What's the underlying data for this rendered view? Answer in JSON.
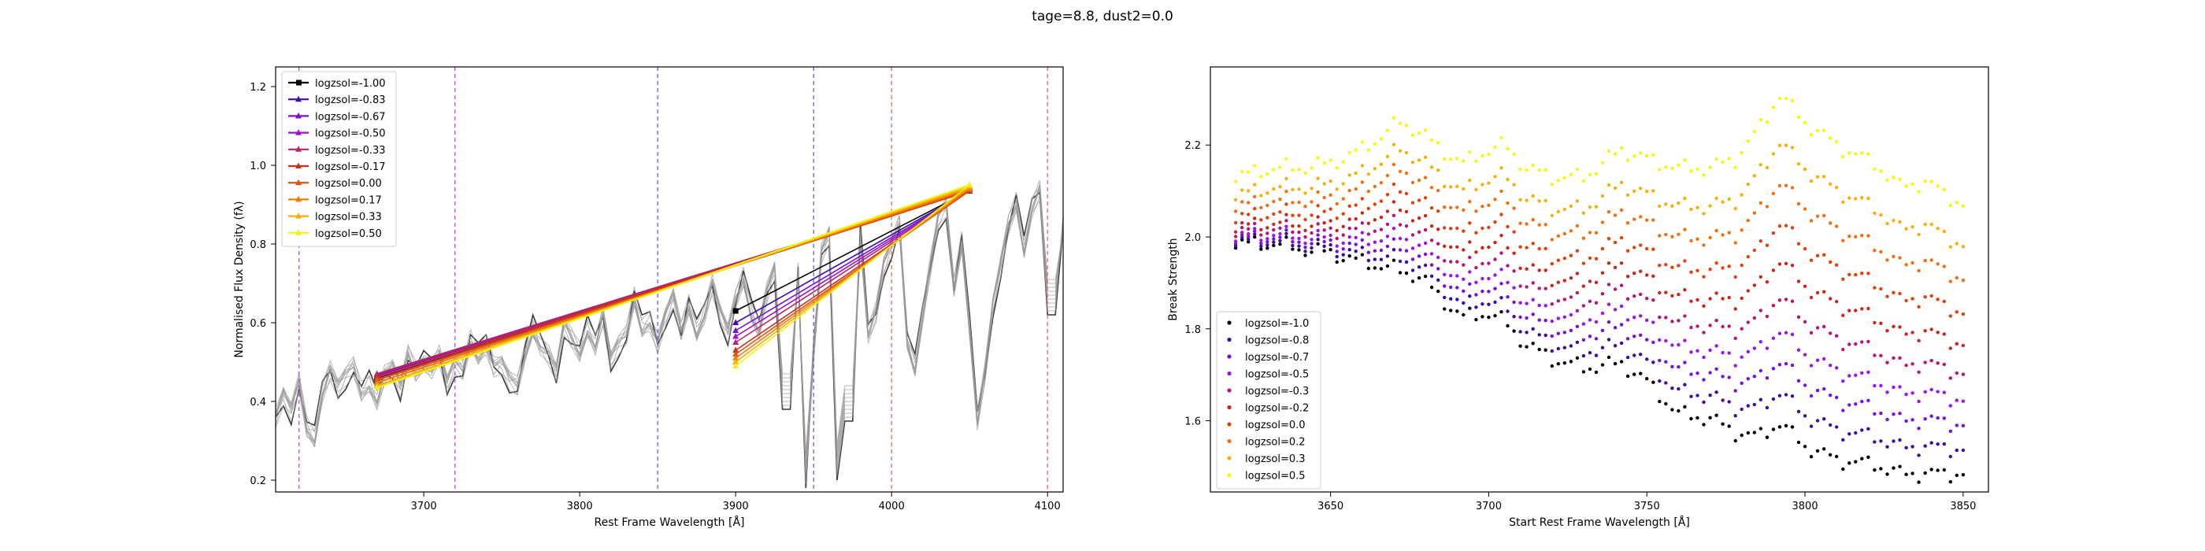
{
  "figure": {
    "suptitle": "tage=8.8, dust2=0.0"
  },
  "chart_data": [
    {
      "type": "line",
      "title": "",
      "xlabel": "Rest Frame Wavelength [Å]",
      "ylabel": "Normalised Flux Density (fλ)",
      "xlim": [
        3605,
        4110
      ],
      "ylim": [
        0.17,
        1.25
      ],
      "xticks": [
        3700,
        3800,
        3900,
        4000,
        4100
      ],
      "yticks": [
        0.2,
        0.4,
        0.6,
        0.8,
        1.0,
        1.2
      ],
      "xtick_labels": [
        "3700",
        "3800",
        "3900",
        "4000",
        "4100"
      ],
      "ytick_labels": [
        "0.2",
        "0.4",
        "0.6",
        "0.8",
        "1.0",
        "1.2"
      ],
      "grid": false,
      "legend_position": "upper-left",
      "vertical_lines": [
        {
          "x": 3620,
          "color": "#b44ee0"
        },
        {
          "x": 3720,
          "color": "#b44ee0"
        },
        {
          "x": 3850,
          "color": "#5566ee"
        },
        {
          "x": 3950,
          "color": "#5566ee"
        },
        {
          "x": 4000,
          "color": "#ee6666"
        },
        {
          "x": 4100,
          "color": "#ee6666"
        }
      ],
      "spectra": {
        "description_key": "background_spectra",
        "x_start": 3605,
        "x_step": 5,
        "base": [
          0.36,
          0.42,
          0.38,
          0.45,
          0.33,
          0.3,
          0.42,
          0.48,
          0.44,
          0.47,
          0.49,
          0.42,
          0.44,
          0.4,
          0.47,
          0.49,
          0.44,
          0.52,
          0.47,
          0.49,
          0.48,
          0.52,
          0.45,
          0.5,
          0.48,
          0.55,
          0.51,
          0.54,
          0.49,
          0.5,
          0.46,
          0.44,
          0.52,
          0.58,
          0.54,
          0.52,
          0.48,
          0.6,
          0.56,
          0.52,
          0.58,
          0.54,
          0.62,
          0.51,
          0.55,
          0.57,
          0.66,
          0.58,
          0.6,
          0.55,
          0.62,
          0.67,
          0.58,
          0.64,
          0.57,
          0.62,
          0.7,
          0.63,
          0.58,
          0.66,
          0.71,
          0.62,
          0.58,
          0.68,
          0.74,
          0.64,
          0.6,
          0.72,
          0.58,
          0.52,
          0.78,
          0.83,
          0.8,
          0.55,
          0.73,
          0.81,
          0.57,
          0.63,
          0.75,
          0.8,
          0.85,
          0.55,
          0.48,
          0.62,
          0.75,
          0.87,
          0.9,
          0.69,
          0.8,
          0.58,
          0.35,
          0.48,
          0.65,
          0.75,
          0.85,
          0.9,
          0.78,
          0.89,
          0.94,
          0.88,
          0.95,
          0.85,
          0.9,
          0.99,
          0.92,
          0.82,
          0.98,
          1.02,
          0.96,
          0.9,
          1.01,
          1.06,
          0.95,
          0.89,
          1.03,
          0.98,
          1.09,
          0.96,
          1.02,
          1.0
        ],
        "dips": [
          [
            3945,
            0.18
          ],
          [
            3933,
            0.38
          ],
          [
            3968,
            0.2
          ],
          [
            3972,
            0.35
          ],
          [
            4102,
            0.62
          ]
        ],
        "count": 10
      },
      "series": [
        {
          "name": "logzsol=-1.00",
          "color": "#000000",
          "marker": "square",
          "y_start": 0.455,
          "y_mid": 0.63,
          "y_end": 0.935
        },
        {
          "name": "logzsol=-0.83",
          "color": "#3d0cb8",
          "marker": "triangle",
          "y_start": 0.46,
          "y_mid": 0.6,
          "y_end": 0.935
        },
        {
          "name": "logzsol=-0.67",
          "color": "#7a10d8",
          "marker": "triangle",
          "y_start": 0.465,
          "y_mid": 0.58,
          "y_end": 0.935
        },
        {
          "name": "logzsol=-0.50",
          "color": "#9b12cf",
          "marker": "triangle",
          "y_start": 0.468,
          "y_mid": 0.565,
          "y_end": 0.935
        },
        {
          "name": "logzsol=-0.33",
          "color": "#b5246b",
          "marker": "triangle",
          "y_start": 0.47,
          "y_mid": 0.55,
          "y_end": 0.935
        },
        {
          "name": "logzsol=-0.17",
          "color": "#c8321a",
          "marker": "triangle",
          "y_start": 0.462,
          "y_mid": 0.53,
          "y_end": 0.935
        },
        {
          "name": "logzsol=0.00",
          "color": "#e0500d",
          "marker": "triangle",
          "y_start": 0.455,
          "y_mid": 0.52,
          "y_end": 0.935
        },
        {
          "name": "logzsol=0.17",
          "color": "#f07b0a",
          "marker": "triangle",
          "y_start": 0.448,
          "y_mid": 0.51,
          "y_end": 0.94
        },
        {
          "name": "logzsol=0.33",
          "color": "#f5ad0a",
          "marker": "triangle",
          "y_start": 0.44,
          "y_mid": 0.5,
          "y_end": 0.945
        },
        {
          "name": "logzsol=0.50",
          "color": "#f5f00d",
          "marker": "triangle",
          "y_start": 0.435,
          "y_mid": 0.49,
          "y_end": 0.95
        }
      ],
      "segment_x": [
        3670,
        3900,
        4050
      ]
    },
    {
      "type": "scatter",
      "title": "",
      "xlabel": "Start Rest Frame Wavelength [Å]",
      "ylabel": "Break Strength",
      "xlim": [
        3612,
        3858
      ],
      "ylim": [
        1.445,
        2.37
      ],
      "xticks": [
        3650,
        3700,
        3750,
        3800,
        3850
      ],
      "yticks": [
        1.6,
        1.8,
        2.0,
        2.2
      ],
      "xtick_labels": [
        "3650",
        "3700",
        "3750",
        "3800",
        "3850"
      ],
      "ytick_labels": [
        "1.6",
        "1.8",
        "2.0",
        "2.2"
      ],
      "grid": false,
      "legend_position": "lower-left",
      "x_start": 3620,
      "x_step": 2,
      "x_end": 3850,
      "shape_knots": [
        [
          3620,
          0.0,
          0.0
        ],
        [
          3632,
          0.0,
          0.02
        ],
        [
          3640,
          -0.01,
          0.02
        ],
        [
          3650,
          -0.02,
          0.03
        ],
        [
          3660,
          -0.04,
          0.06
        ],
        [
          3668,
          -0.05,
          0.1
        ],
        [
          3672,
          -0.06,
          0.12
        ],
        [
          3678,
          -0.07,
          0.1
        ],
        [
          3685,
          -0.12,
          0.06
        ],
        [
          3692,
          -0.16,
          0.03
        ],
        [
          3700,
          -0.15,
          0.06
        ],
        [
          3705,
          -0.17,
          0.07
        ],
        [
          3712,
          -0.22,
          0.02
        ],
        [
          3720,
          -0.25,
          0.0
        ],
        [
          3730,
          -0.27,
          0.0
        ],
        [
          3742,
          -0.26,
          0.06
        ],
        [
          3750,
          -0.3,
          0.04
        ],
        [
          3760,
          -0.37,
          0.02
        ],
        [
          3770,
          -0.38,
          0.02
        ],
        [
          3778,
          -0.41,
          0.04
        ],
        [
          3785,
          -0.42,
          0.1
        ],
        [
          3792,
          -0.39,
          0.18
        ],
        [
          3800,
          -0.44,
          0.12
        ],
        [
          3810,
          -0.47,
          0.07
        ],
        [
          3822,
          -0.48,
          0.03
        ],
        [
          3830,
          -0.5,
          -0.02
        ],
        [
          3838,
          -0.5,
          -0.01
        ],
        [
          3850,
          -0.5,
          -0.06
        ]
      ],
      "series": [
        {
          "name": "logzsol=-1.0",
          "color": "#000000",
          "level": 1.985,
          "t": 0.0
        },
        {
          "name": "logzsol=-0.8",
          "color": "#3d0c9e",
          "level": 1.99,
          "t": 0.11
        },
        {
          "name": "logzsol=-0.7",
          "color": "#7a10d8",
          "level": 1.995,
          "t": 0.22
        },
        {
          "name": "logzsol=-0.5",
          "color": "#9b14e8",
          "level": 2.0,
          "t": 0.33
        },
        {
          "name": "logzsol=-0.3",
          "color": "#b5147a",
          "level": 2.01,
          "t": 0.44
        },
        {
          "name": "logzsol=-0.2",
          "color": "#c8281a",
          "level": 2.02,
          "t": 0.56
        },
        {
          "name": "logzsol=0.0",
          "color": "#e0420d",
          "level": 2.04,
          "t": 0.67
        },
        {
          "name": "logzsol=0.2",
          "color": "#f07012",
          "level": 2.065,
          "t": 0.78
        },
        {
          "name": "logzsol=0.3",
          "color": "#f5b00a",
          "level": 2.09,
          "t": 0.89
        },
        {
          "name": "logzsol=0.5",
          "color": "#f8f80d",
          "level": 2.13,
          "t": 1.0
        }
      ]
    }
  ]
}
